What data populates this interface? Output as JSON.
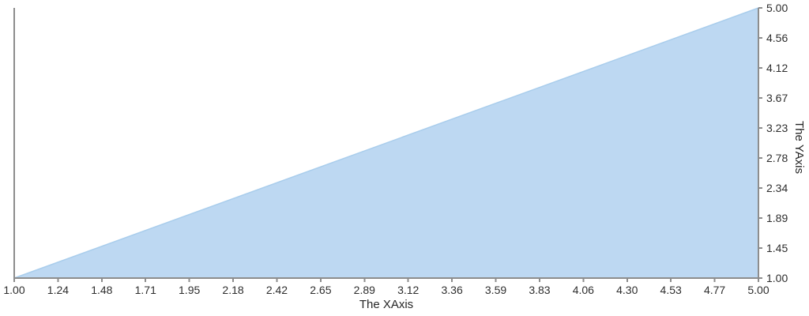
{
  "chart_data": {
    "type": "area",
    "title": "",
    "xlabel": "The XAxis",
    "ylabel": "The YAxis",
    "xlim": [
      1.0,
      5.0
    ],
    "ylim": [
      1.0,
      5.0
    ],
    "x_tick_labels": [
      "1.00",
      "1.24",
      "1.48",
      "1.71",
      "1.95",
      "2.18",
      "2.42",
      "2.65",
      "2.89",
      "3.12",
      "3.36",
      "3.59",
      "3.83",
      "4.06",
      "4.30",
      "4.53",
      "4.77",
      "5.00"
    ],
    "y_tick_labels": [
      "1.00",
      "1.45",
      "1.89",
      "2.34",
      "2.78",
      "3.23",
      "3.67",
      "4.12",
      "4.56",
      "5.00"
    ],
    "y_axis_position": "right",
    "grid": false,
    "legend_position": "none",
    "series": [
      {
        "x": [
          1.0,
          5.0
        ],
        "y": [
          1.0,
          5.0
        ]
      }
    ],
    "colors": {
      "area_fill": "#bdd8f2",
      "line": "#a9cdec",
      "axis": "#8d8d8d",
      "tick_label": "#2e2e2e"
    }
  }
}
